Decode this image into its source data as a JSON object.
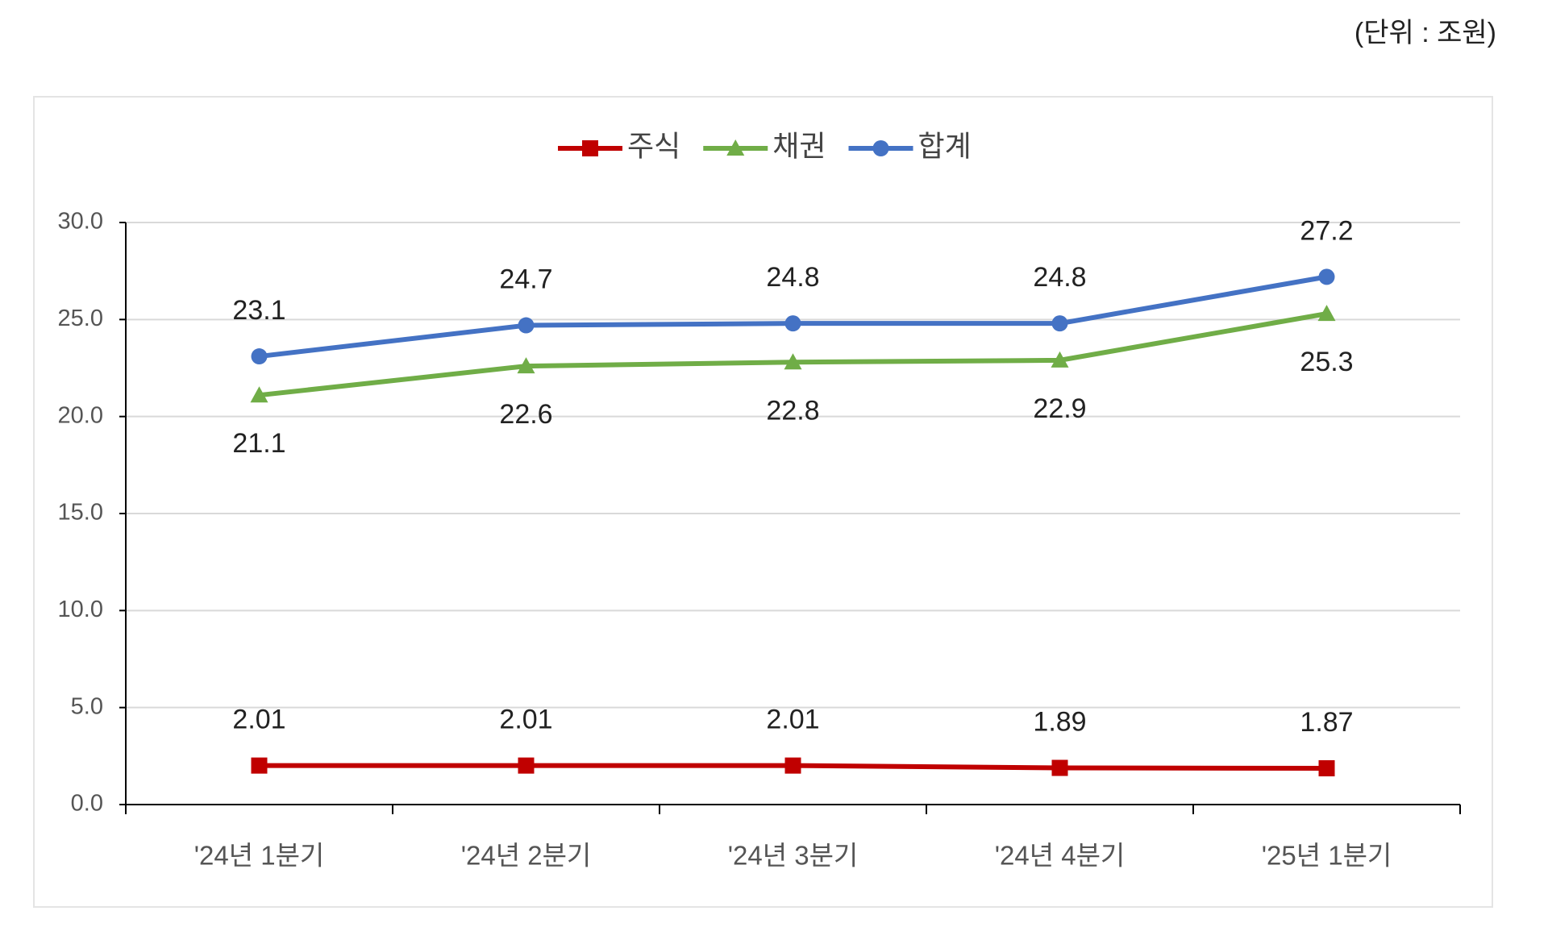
{
  "chart_data": {
    "type": "line",
    "unit_note": "(단위 : 조원)",
    "categories": [
      "'24년 1분기",
      "'24년 2분기",
      "'24년 3분기",
      "'24년 4분기",
      "'25년 1분기"
    ],
    "series": [
      {
        "name": "주식",
        "color": "#c00000",
        "marker": "square",
        "values": [
          2.01,
          2.01,
          2.01,
          1.89,
          1.87
        ]
      },
      {
        "name": "채권",
        "color": "#70ad47",
        "marker": "triangle",
        "values": [
          21.1,
          22.6,
          22.8,
          22.9,
          25.3
        ]
      },
      {
        "name": "합계",
        "color": "#4472c4",
        "marker": "circle",
        "values": [
          23.1,
          24.7,
          24.8,
          24.8,
          27.2
        ]
      }
    ],
    "ylim": [
      0,
      30
    ],
    "yticks": [
      {
        "value": 0,
        "label": "0.0"
      },
      {
        "value": 5,
        "label": "5.0"
      },
      {
        "value": 10,
        "label": "10.0"
      },
      {
        "value": 15,
        "label": "15.0"
      },
      {
        "value": 20,
        "label": "20.0"
      },
      {
        "value": 25,
        "label": "25.0"
      },
      {
        "value": 30,
        "label": "30.0"
      }
    ],
    "grid": true,
    "legend": "top"
  }
}
